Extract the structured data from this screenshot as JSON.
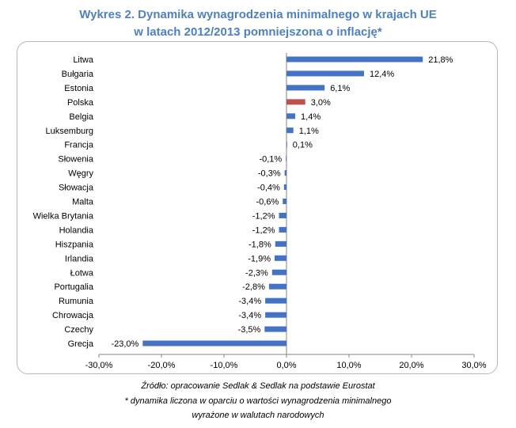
{
  "header": {
    "title_line1": "Wykres 2. Dynamika wynagrodzenia minimalnego w krajach UE",
    "title_line2": "w latach 2012/2013 pomniejszona o inflację*"
  },
  "footer": {
    "source": "Źródło: opracowanie Sedlak & Sedlak na podstawie Eurostat",
    "note_line1": "* dynamika liczona w oparciu o wartości  wynagrodzenia minimalnego",
    "note_line2": "wyrażone w walutach narodowych"
  },
  "colors": {
    "bar": "#4472c4",
    "highlight_bar": "#c0504d",
    "title": "#4f81bd"
  },
  "chart_data": {
    "type": "bar",
    "orientation": "horizontal",
    "categories": [
      "Litwa",
      "Bułgaria",
      "Estonia",
      "Polska",
      "Belgia",
      "Luksemburg",
      "Francja",
      "Słowenia",
      "Węgry",
      "Słowacja",
      "Malta",
      "Wielka Brytania",
      "Holandia",
      "Hiszpania",
      "Irlandia",
      "Łotwa",
      "Portugalia",
      "Rumunia",
      "Chrowacja",
      "Czechy",
      "Grecja"
    ],
    "values": [
      21.8,
      12.4,
      6.1,
      3.0,
      1.4,
      1.1,
      0.1,
      -0.1,
      -0.3,
      -0.4,
      -0.6,
      -1.2,
      -1.2,
      -1.8,
      -1.9,
      -2.3,
      -2.8,
      -3.4,
      -3.4,
      -3.5,
      -23.0
    ],
    "data_labels": [
      "21,8%",
      "12,4%",
      "6,1%",
      "3,0%",
      "1,4%",
      "1,1%",
      "0,1%",
      "-0,1%",
      "-0,3%",
      "-0,4%",
      "-0,6%",
      "-1,2%",
      "-1,2%",
      "-1,8%",
      "-1,9%",
      "-2,3%",
      "-2,8%",
      "-3,4%",
      "-3,4%",
      "-3,5%",
      "-23,0%"
    ],
    "highlight": "Polska",
    "xlim": [
      -30,
      30
    ],
    "xticks": [
      -30,
      -20,
      -10,
      0,
      10,
      20,
      30
    ],
    "xtick_labels": [
      "-30,0%",
      "-20,0%",
      "-10,0%",
      "0,0%",
      "10,0%",
      "20,0%",
      "30,0%"
    ],
    "title": "",
    "xlabel": "",
    "ylabel": "",
    "grid": false,
    "legend": false
  }
}
